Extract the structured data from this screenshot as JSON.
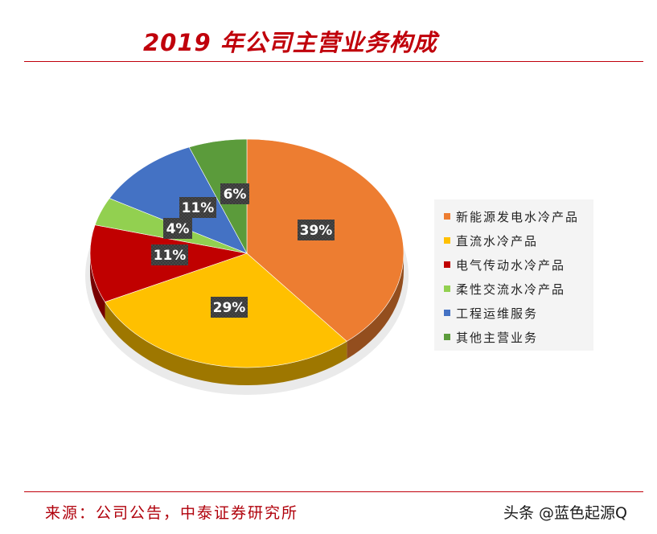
{
  "title": "2019 年公司主营业务构成",
  "source": "来源：公司公告，中泰证券研究所",
  "watermark": "头条 @蓝色起源Q",
  "chart_data": {
    "type": "pie",
    "title": "2019 年公司主营业务构成",
    "legend_position": "right",
    "slices": [
      {
        "name": "新能源发电水冷产品",
        "value": 39,
        "label": "39%",
        "color": "#ed7d31"
      },
      {
        "name": "直流水冷产品",
        "value": 29,
        "label": "29%",
        "color": "#ffc000"
      },
      {
        "name": "电气传动水冷产品",
        "value": 11,
        "label": "11%",
        "color": "#c00000"
      },
      {
        "name": "柔性交流水冷产品",
        "value": 4,
        "label": "4%",
        "color": "#92d050"
      },
      {
        "name": "工程运维服务",
        "value": 11,
        "label": "11%",
        "color": "#4472c4"
      },
      {
        "name": "其他主营业务",
        "value": 6,
        "label": "6%",
        "color": "#5b9b3b"
      }
    ]
  }
}
